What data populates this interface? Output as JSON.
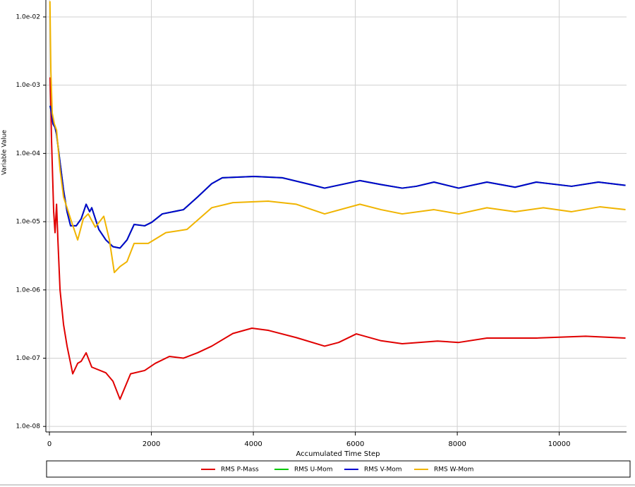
{
  "chart_data": {
    "type": "line",
    "x_label": "Accumulated Time Step",
    "y_label": "Variable Value",
    "yscale": "log",
    "grid": true,
    "legend": "bottom",
    "xlim": [
      -70,
      11320
    ],
    "xticks": [
      0,
      2000,
      4000,
      6000,
      8000,
      10000
    ],
    "ylim": [
      8.3e-09,
      0.0177
    ],
    "yticks": [
      {
        "value": 1e-08,
        "label": "1.0e-08"
      },
      {
        "value": 1e-07,
        "label": "1.0e-07"
      },
      {
        "value": 1e-06,
        "label": "1.0e-06"
      },
      {
        "value": 1e-05,
        "label": "1.0e-05"
      },
      {
        "value": 0.0001,
        "label": "1.0e-04"
      },
      {
        "value": 0.001,
        "label": "1.0e-03"
      },
      {
        "value": 0.01,
        "label": "1.0e-02"
      }
    ],
    "series": [
      {
        "name": "RMS P-Mass",
        "color": "#e00000",
        "x": [
          14,
          42,
          83,
          110,
          140,
          166,
          208,
          277,
          346,
          457,
          554,
          623,
          720,
          830,
          1107,
          1246,
          1384,
          1592,
          1868,
          2076,
          2353,
          2630,
          2906,
          3183,
          3598,
          3972,
          4290,
          4844,
          5398,
          5674,
          6020,
          6505,
          6920,
          7612,
          8027,
          8581,
          9550,
          10518,
          11300
        ],
        "values": [
          0.0013,
          0.00015,
          1.4e-05,
          6.9e-06,
          1.8e-05,
          5.4e-06,
          1e-06,
          3.1e-07,
          1.5e-07,
          5.9e-08,
          8.4e-08,
          9e-08,
          1.2e-07,
          7.4e-08,
          6.1e-08,
          4.6e-08,
          2.5e-08,
          5.9e-08,
          6.6e-08,
          8.4e-08,
          1.06e-07,
          1e-07,
          1.2e-07,
          1.5e-07,
          2.3e-07,
          2.75e-07,
          2.56e-07,
          2e-07,
          1.5e-07,
          1.7e-07,
          2.27e-07,
          1.8e-07,
          1.63e-07,
          1.78e-07,
          1.7e-07,
          1.97e-07,
          1.97e-07,
          2.1e-07,
          1.97e-07
        ]
      },
      {
        "name": "RMS U-Mom",
        "color": "#00c800",
        "x": [
          14,
          42,
          70,
          110,
          140,
          208,
          277,
          346,
          415,
          526,
          623,
          720,
          789,
          830,
          969,
          1107,
          1246,
          1384,
          1522,
          1661,
          1868,
          2007,
          2214,
          2630,
          2906,
          3183,
          3391,
          4013,
          4567,
          5121,
          5398,
          6090,
          6505,
          6920,
          7197,
          7543,
          8027,
          8581,
          9134,
          9550,
          10242,
          10768,
          11300
        ],
        "values": [
          0.0005,
          0.00039,
          0.00027,
          0.00024,
          0.00019,
          7.4e-05,
          2.9e-05,
          1.4e-05,
          8.7e-06,
          8.7e-06,
          1.1e-05,
          1.8e-05,
          1.4e-05,
          1.6e-05,
          7.7e-06,
          5.4e-06,
          4.3e-06,
          4.1e-06,
          5.4e-06,
          9.1e-06,
          8.7e-06,
          9.8e-06,
          1.3e-05,
          1.5e-05,
          2.3e-05,
          3.6e-05,
          4.4e-05,
          4.6e-05,
          4.4e-05,
          3.5e-05,
          3.1e-05,
          4e-05,
          3.5e-05,
          3.1e-05,
          3.3e-05,
          3.8e-05,
          3.1e-05,
          3.8e-05,
          3.2e-05,
          3.8e-05,
          3.3e-05,
          3.8e-05,
          3.4e-05
        ]
      },
      {
        "name": "RMS V-Mom",
        "color": "#0000d0",
        "x": [
          14,
          42,
          70,
          110,
          140,
          208,
          277,
          346,
          415,
          526,
          623,
          720,
          789,
          830,
          969,
          1107,
          1246,
          1384,
          1522,
          1661,
          1868,
          2007,
          2214,
          2630,
          2906,
          3183,
          3391,
          4013,
          4567,
          5121,
          5398,
          6090,
          6505,
          6920,
          7197,
          7543,
          8027,
          8581,
          9134,
          9550,
          10242,
          10768,
          11300
        ],
        "values": [
          0.0005,
          0.00039,
          0.00027,
          0.00024,
          0.00019,
          7.4e-05,
          2.9e-05,
          1.4e-05,
          8.7e-06,
          8.7e-06,
          1.1e-05,
          1.8e-05,
          1.4e-05,
          1.6e-05,
          7.7e-06,
          5.4e-06,
          4.3e-06,
          4.1e-06,
          5.4e-06,
          9.1e-06,
          8.7e-06,
          9.8e-06,
          1.3e-05,
          1.5e-05,
          2.3e-05,
          3.6e-05,
          4.4e-05,
          4.6e-05,
          4.4e-05,
          3.5e-05,
          3.1e-05,
          4e-05,
          3.5e-05,
          3.1e-05,
          3.3e-05,
          3.8e-05,
          3.1e-05,
          3.8e-05,
          3.2e-05,
          3.8e-05,
          3.3e-05,
          3.8e-05,
          3.4e-05
        ]
      },
      {
        "name": "RMS W-Mom",
        "color": "#f0b400",
        "x": [
          10,
          28,
          55,
          97,
          140,
          208,
          277,
          415,
          554,
          664,
          761,
          900,
          1066,
          1176,
          1273,
          1384,
          1522,
          1661,
          1938,
          2284,
          2699,
          3183,
          3598,
          4290,
          4844,
          5398,
          6090,
          6505,
          6920,
          7543,
          8027,
          8581,
          9134,
          9689,
          10242,
          10795,
          11300
        ],
        "values": [
          0.017,
          0.0016,
          0.00039,
          0.00027,
          0.00022,
          5.8e-05,
          2.3e-05,
          1.1e-05,
          5.4e-06,
          1.1e-05,
          1.3e-05,
          8.3e-06,
          1.2e-05,
          5.4e-06,
          1.8e-06,
          2.2e-06,
          2.6e-06,
          4.8e-06,
          4.8e-06,
          6.9e-06,
          7.7e-06,
          1.6e-05,
          1.9e-05,
          2e-05,
          1.8e-05,
          1.3e-05,
          1.8e-05,
          1.5e-05,
          1.3e-05,
          1.5e-05,
          1.3e-05,
          1.6e-05,
          1.4e-05,
          1.6e-05,
          1.4e-05,
          1.65e-05,
          1.5e-05
        ]
      }
    ]
  }
}
